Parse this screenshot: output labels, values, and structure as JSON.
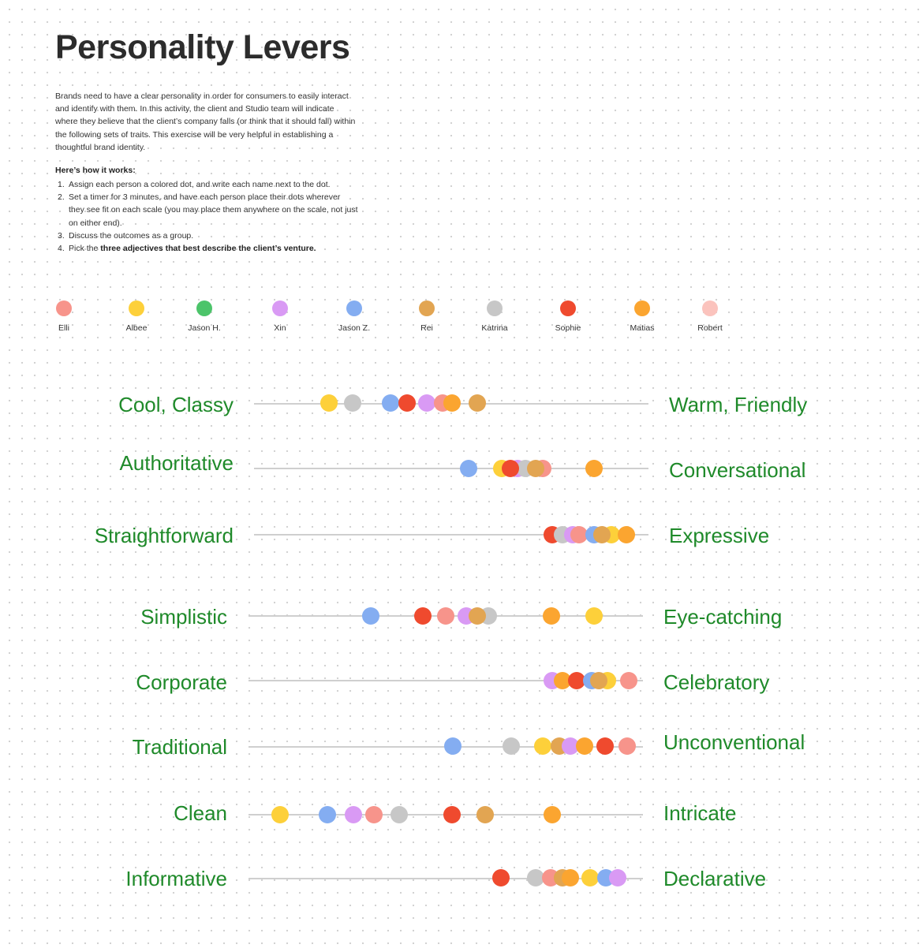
{
  "title": "Personality Levers",
  "intro": "Brands need to have a clear personality in order for consumers to easily interact and identify with them. In this activity, the client and Studio team will indicate where they believe that the client’s company falls (or think that it should fall) within the following sets of traits. This exercise will be very helpful in establishing a thoughtful brand identity.",
  "how_title": "Here’s how it works:",
  "steps": [
    {
      "num": "1.",
      "text": "Assign each person a colored dot, and write each name next to the dot."
    },
    {
      "num": "2.",
      "text": "Set a timer for 3 minutes, and have each person place their dots wherever they see fit on each scale (you may place them anywhere on the scale, not just on either end)."
    },
    {
      "num": "3.",
      "text": "Discuss the outcomes as a group."
    },
    {
      "num": "4.",
      "pre": "Pick the ",
      "bold": "three adjectives that best describe the client’s venture."
    }
  ],
  "participants": [
    {
      "name": "Elli",
      "color": "#f7948b"
    },
    {
      "name": "Albee",
      "color": "#fdd03a"
    },
    {
      "name": "Jason H.",
      "color": "#4cc46a"
    },
    {
      "name": "Xin",
      "color": "#d99af4"
    },
    {
      "name": "Jason Z.",
      "color": "#84adf1"
    },
    {
      "name": "Rei",
      "color": "#e2a552"
    },
    {
      "name": "Katrina",
      "color": "#c7c7c7"
    },
    {
      "name": "Sophie",
      "color": "#ef4a2e"
    },
    {
      "name": "Matias",
      "color": "#fba530"
    },
    {
      "name": "Robert",
      "color": "#fbc3bd"
    }
  ],
  "levers": [
    {
      "left": "Cool, Classy",
      "right": "Warm, Friendly",
      "dots": [
        [
          "Albee",
          0.19
        ],
        [
          "Katrina",
          0.25
        ],
        [
          "Jason Z.",
          0.345
        ],
        [
          "Sophie",
          0.388
        ],
        [
          "Xin",
          0.438
        ],
        [
          "Elli",
          0.478
        ],
        [
          "Matias",
          0.502
        ],
        [
          "Rei",
          0.566
        ]
      ]
    },
    {
      "left": "Authoritative",
      "right": "Conversational",
      "dots": [
        [
          "Jason Z.",
          0.543
        ],
        [
          "Albee",
          0.628
        ],
        [
          "Xin",
          0.668
        ],
        [
          "Katrina",
          0.688
        ],
        [
          "Elli",
          0.732
        ],
        [
          "Sophie",
          0.65
        ],
        [
          "Rei",
          0.713
        ],
        [
          "Matias",
          0.862
        ]
      ]
    },
    {
      "left": "Straightforward",
      "right": "Expressive",
      "dots": [
        [
          "Sophie",
          0.755
        ],
        [
          "Katrina",
          0.782
        ],
        [
          "Xin",
          0.807
        ],
        [
          "Elli",
          0.823
        ],
        [
          "Jason Z.",
          0.862
        ],
        [
          "Albee",
          0.905
        ],
        [
          "Rei",
          0.882
        ],
        [
          "Matias",
          0.943
        ]
      ]
    },
    {
      "left": "Simplistic",
      "right": "Eye-catching",
      "dots": [
        [
          "Jason Z.",
          0.31
        ],
        [
          "Sophie",
          0.442
        ],
        [
          "Elli",
          0.5
        ],
        [
          "Xin",
          0.552
        ],
        [
          "Katrina",
          0.607
        ],
        [
          "Rei",
          0.58
        ],
        [
          "Matias",
          0.767
        ],
        [
          "Albee",
          0.876
        ]
      ]
    },
    {
      "left": "Corporate",
      "right": "Celebratory",
      "dots": [
        [
          "Xin",
          0.77
        ],
        [
          "Matias",
          0.795
        ],
        [
          "Sophie",
          0.832
        ],
        [
          "Jason Z.",
          0.87
        ],
        [
          "Albee",
          0.91
        ],
        [
          "Rei",
          0.888
        ],
        [
          "Elli",
          0.963
        ]
      ]
    },
    {
      "left": "Traditional",
      "right": "Unconventional",
      "dots": [
        [
          "Jason Z.",
          0.518
        ],
        [
          "Katrina",
          0.665
        ],
        [
          "Albee",
          0.745
        ],
        [
          "Rei",
          0.788
        ],
        [
          "Xin",
          0.815
        ],
        [
          "Matias",
          0.852
        ],
        [
          "Sophie",
          0.904
        ],
        [
          "Elli",
          0.96
        ]
      ]
    },
    {
      "left": "Clean",
      "right": "Intricate",
      "dots": [
        [
          "Albee",
          0.08
        ],
        [
          "Jason Z.",
          0.2
        ],
        [
          "Xin",
          0.266
        ],
        [
          "Elli",
          0.318
        ],
        [
          "Katrina",
          0.382
        ],
        [
          "Sophie",
          0.515
        ],
        [
          "Rei",
          0.6
        ],
        [
          "Matias",
          0.77
        ]
      ]
    },
    {
      "left": "Informative",
      "right": "Declarative",
      "dots": [
        [
          "Sophie",
          0.64
        ],
        [
          "Katrina",
          0.728
        ],
        [
          "Elli",
          0.766
        ],
        [
          "Rei",
          0.795
        ],
        [
          "Matias",
          0.815
        ],
        [
          "Albee",
          0.866
        ],
        [
          "Jason Z.",
          0.906
        ],
        [
          "Xin",
          0.935
        ]
      ]
    }
  ]
}
